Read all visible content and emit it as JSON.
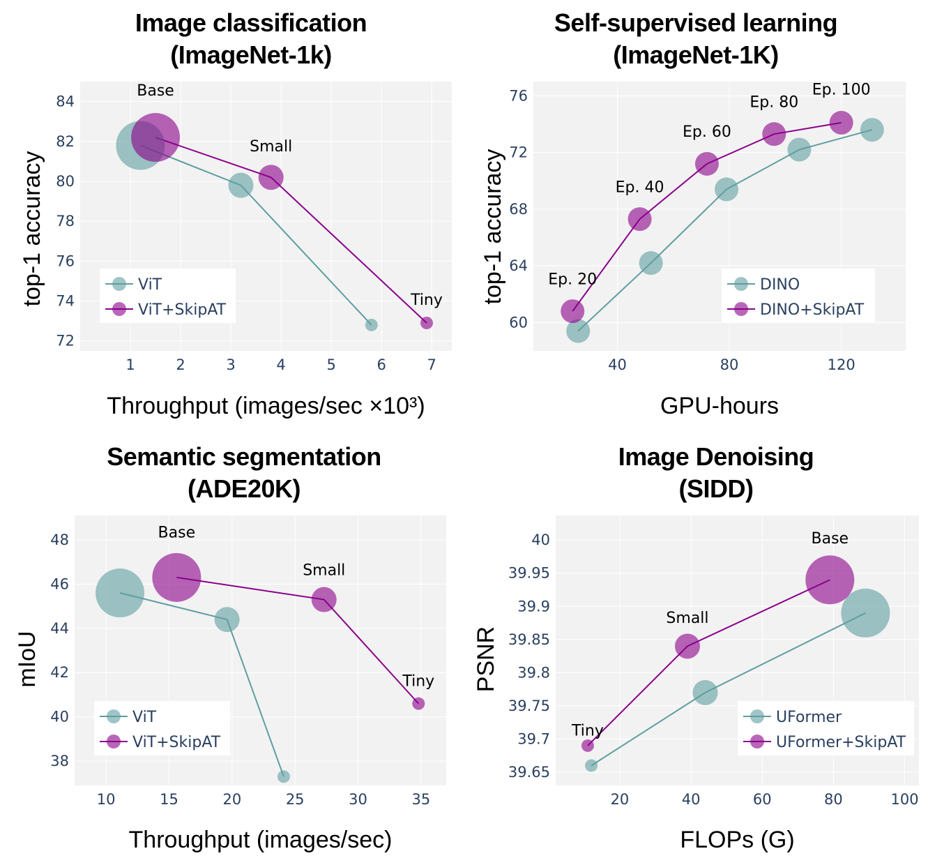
{
  "colors": {
    "teal": "#5f9ea0",
    "purple": "#8b008b",
    "plot_bg": "#f2f2f2",
    "grid": "#ffffff"
  },
  "chart_data": [
    {
      "type": "scatter",
      "title": [
        "Image classification",
        "(ImageNet-1k)"
      ],
      "xlabel": "Throughput (images/sec ×10³)",
      "ylabel": "top-1 accuracy",
      "xlim": [
        0,
        7.4
      ],
      "ylim": [
        71.5,
        85
      ],
      "xticks": [
        1,
        2,
        3,
        4,
        5,
        6,
        7
      ],
      "xtick_labels": [
        "1",
        "2",
        "3",
        "4",
        "5",
        "6",
        "7"
      ],
      "yticks": [
        72,
        74,
        76,
        78,
        80,
        82,
        84
      ],
      "ytick_labels": [
        "72",
        "74",
        "76",
        "78",
        "80",
        "82",
        "84"
      ],
      "grid": true,
      "legend_position": "bottom-left",
      "series": [
        {
          "name": "ViT",
          "color": "teal",
          "x": [
            1.2,
            3.2,
            5.8
          ],
          "y": [
            81.8,
            79.8,
            72.8
          ],
          "size": [
            3,
            2,
            1
          ]
        },
        {
          "name": "ViT+SkipAT",
          "color": "purple",
          "x": [
            1.5,
            3.8,
            6.9
          ],
          "y": [
            82.2,
            80.2,
            72.9
          ],
          "size": [
            3,
            2,
            1
          ]
        }
      ],
      "annotations": [
        {
          "text": "Base",
          "x": 1.5,
          "y": 84.3
        },
        {
          "text": "Small",
          "x": 3.8,
          "y": 81.5
        },
        {
          "text": "Tiny",
          "x": 6.9,
          "y": 73.8
        }
      ]
    },
    {
      "type": "scatter",
      "title": [
        "Self-supervised learning",
        "(ImageNet-1K)"
      ],
      "xlabel": "GPU-hours",
      "ylabel": "top-1 accuracy",
      "xlim": [
        10,
        143
      ],
      "ylim": [
        58,
        77
      ],
      "xticks": [
        40,
        80,
        120
      ],
      "xtick_labels": [
        "40",
        "80",
        "120"
      ],
      "yticks": [
        60,
        64,
        68,
        72,
        76
      ],
      "ytick_labels": [
        "60",
        "64",
        "68",
        "72",
        "76"
      ],
      "grid": true,
      "legend_position": "bottom-right",
      "series": [
        {
          "name": "DINO",
          "color": "teal",
          "x": [
            26,
            52,
            79,
            105,
            131
          ],
          "y": [
            59.4,
            64.2,
            69.4,
            72.2,
            73.6
          ],
          "size": [
            2,
            2,
            2,
            2,
            2
          ]
        },
        {
          "name": "DINO+SkipAT",
          "color": "purple",
          "x": [
            24,
            48,
            72,
            96,
            120
          ],
          "y": [
            60.8,
            67.3,
            71.2,
            73.3,
            74.1
          ],
          "size": [
            2,
            2,
            2,
            2,
            2
          ]
        }
      ],
      "annotations": [
        {
          "text": "Ep. 20",
          "x": 24,
          "y": 62.7
        },
        {
          "text": "Ep. 40",
          "x": 48,
          "y": 69.2
        },
        {
          "text": "Ep. 60",
          "x": 72,
          "y": 73.1
        },
        {
          "text": "Ep. 80",
          "x": 96,
          "y": 75.2
        },
        {
          "text": "Ep. 100",
          "x": 120,
          "y": 76.1
        }
      ]
    },
    {
      "type": "scatter",
      "title": [
        "Semantic segmentation",
        "(ADE20K)"
      ],
      "xlabel": "Throughput (images/sec)",
      "ylabel": "mIoU",
      "xlim": [
        7.5,
        37
      ],
      "ylim": [
        36.9,
        49.1
      ],
      "xticks": [
        10,
        15,
        20,
        25,
        30,
        35
      ],
      "xtick_labels": [
        "10",
        "15",
        "20",
        "25",
        "30",
        "35"
      ],
      "yticks": [
        38,
        40,
        42,
        44,
        46,
        48
      ],
      "ytick_labels": [
        "38",
        "40",
        "42",
        "44",
        "46",
        "48"
      ],
      "grid": true,
      "legend_position": "bottom-left",
      "series": [
        {
          "name": "ViT",
          "color": "teal",
          "x": [
            11.1,
            19.6,
            24.1
          ],
          "y": [
            45.6,
            44.4,
            37.3
          ],
          "size": [
            3,
            2,
            1
          ]
        },
        {
          "name": "ViT+SkipAT",
          "color": "purple",
          "x": [
            15.6,
            27.3,
            34.8
          ],
          "y": [
            46.3,
            45.3,
            40.6
          ],
          "size": [
            3,
            2,
            1
          ]
        }
      ],
      "annotations": [
        {
          "text": "Base",
          "x": 15.6,
          "y": 48.1
        },
        {
          "text": "Small",
          "x": 27.3,
          "y": 46.4
        },
        {
          "text": "Tiny",
          "x": 34.8,
          "y": 41.4
        }
      ]
    },
    {
      "type": "scatter",
      "title": [
        "Image Denoising",
        "(SIDD)"
      ],
      "xlabel": "FLOPs (G)",
      "ylabel": "PSNR",
      "xlim": [
        2,
        104
      ],
      "ylim": [
        39.63,
        40.037
      ],
      "xticks": [
        20,
        40,
        60,
        80,
        100
      ],
      "xtick_labels": [
        "20",
        "40",
        "60",
        "80",
        "100"
      ],
      "yticks": [
        39.65,
        39.7,
        39.75,
        39.8,
        39.85,
        39.9,
        39.95,
        40
      ],
      "ytick_labels": [
        "39.65",
        "39.7",
        "39.75",
        "39.8",
        "39.85",
        "39.9",
        "39.95",
        "40"
      ],
      "grid": true,
      "legend_position": "bottom-right",
      "series": [
        {
          "name": "UFormer",
          "color": "teal",
          "x": [
            12,
            44,
            89
          ],
          "y": [
            39.66,
            39.77,
            39.89
          ],
          "size": [
            1,
            2,
            3
          ]
        },
        {
          "name": "UFormer+SkipAT",
          "color": "purple",
          "x": [
            11,
            39,
            79
          ],
          "y": [
            39.69,
            39.84,
            39.94
          ],
          "size": [
            1,
            2,
            3
          ]
        }
      ],
      "annotations": [
        {
          "text": "Tiny",
          "x": 11,
          "y": 39.705
        },
        {
          "text": "Small",
          "x": 39,
          "y": 39.875
        },
        {
          "text": "Base",
          "x": 79,
          "y": 39.995
        }
      ]
    }
  ]
}
